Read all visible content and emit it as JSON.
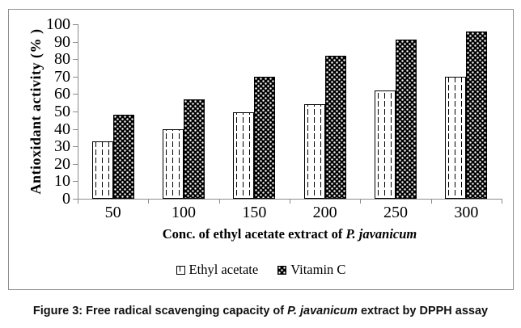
{
  "figure": {
    "caption": {
      "prefix": "Figure 3: Free radical scavenging capacity of ",
      "italic": "P. javanicum",
      "suffix": " extract by DPPH assay"
    }
  },
  "chart_data": {
    "type": "bar",
    "title": "",
    "categories": [
      50,
      100,
      150,
      200,
      250,
      300
    ],
    "series": [
      {
        "name": "Ethyl acetate",
        "pattern": "light-dashed",
        "values": [
          33,
          40,
          49.5,
          54,
          62,
          70
        ]
      },
      {
        "name": "Vitamin C",
        "pattern": "dark-dotted",
        "values": [
          48,
          57,
          70,
          82,
          91,
          96
        ]
      }
    ],
    "xlabel": {
      "prefix": "Conc. of ethyl acetate extract of ",
      "italic": "P. javanicum"
    },
    "ylabel": "Antioxidant activity (% )",
    "ylim": [
      0,
      100
    ],
    "ytick_step": 10,
    "grid": false,
    "legend_position": "bottom",
    "axis_color": "#8c8c8c",
    "bar_border_color": "#000000",
    "frame_border_color": "#8f8f8f"
  }
}
